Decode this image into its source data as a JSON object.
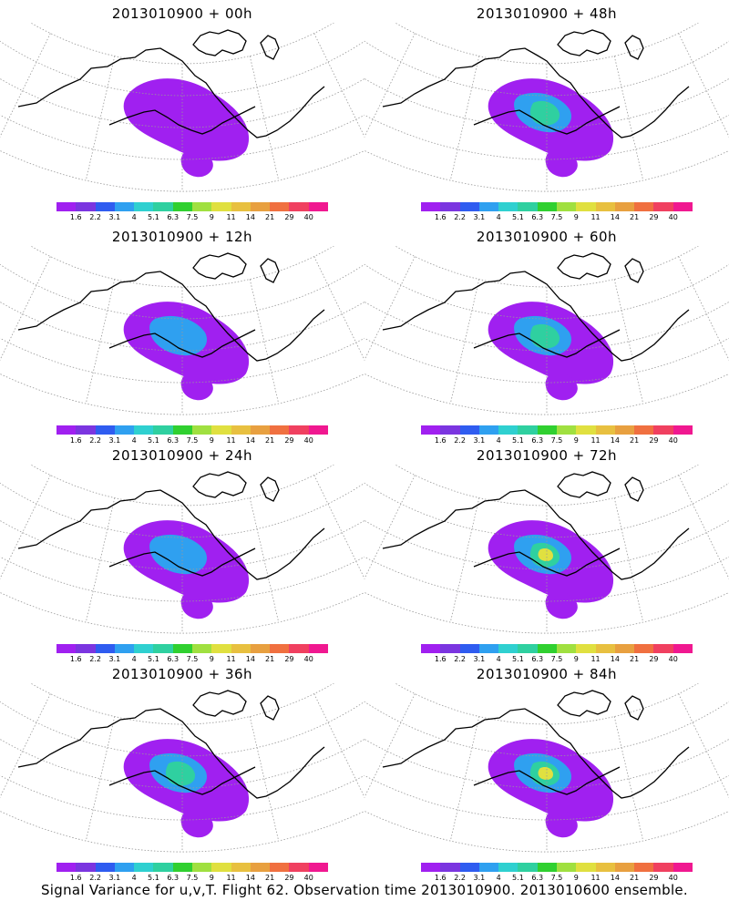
{
  "caption": "Signal Variance for u,v,T. Flight 62. Observation time 2013010900. 2013010600 ensemble.",
  "colorbar": {
    "colors": [
      "#a020f0",
      "#7b35e0",
      "#2f5cf0",
      "#2fa0f0",
      "#2fd0d0",
      "#2fd0a0",
      "#30d030",
      "#a0e040",
      "#e0e040",
      "#e8c040",
      "#e8a040",
      "#f07040",
      "#f04060",
      "#f01890"
    ],
    "labels": [
      "1.6",
      "2.2",
      "3.1",
      "4",
      "5.1",
      "6.3",
      "7.5",
      "9",
      "11",
      "14",
      "21",
      "29",
      "40"
    ]
  },
  "panels": [
    {
      "title": "2013010900 + 00h",
      "level": 0
    },
    {
      "title": "2013010900 + 48h",
      "level": 2
    },
    {
      "title": "2013010900 + 12h",
      "level": 1
    },
    {
      "title": "2013010900 + 60h",
      "level": 2
    },
    {
      "title": "2013010900 + 24h",
      "level": 1
    },
    {
      "title": "2013010900 + 72h",
      "level": 3
    },
    {
      "title": "2013010900 + 36h",
      "level": 2
    },
    {
      "title": "2013010900 + 84h",
      "level": 3
    }
  ]
}
